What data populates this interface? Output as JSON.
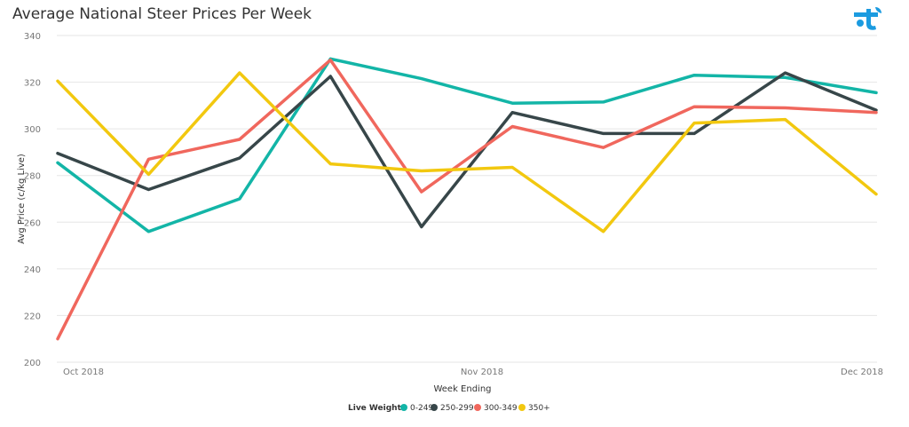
{
  "chart_data": {
    "type": "line",
    "title": "Average National Steer Prices Per Week",
    "xlabel": "Week Ending",
    "ylabel": "Avg Price (c/kg Live)",
    "ylim": [
      200,
      340
    ],
    "yticks": [
      200,
      220,
      240,
      260,
      280,
      300,
      320,
      340
    ],
    "x_tick_labels": [
      "Oct 2018",
      "Nov 2018",
      "Dec 2018"
    ],
    "legend_title": "Live Weight",
    "legend_position": "bottom-center",
    "grid": true,
    "series": [
      {
        "name": "0-249",
        "color": "#13b5a7",
        "values": [
          285.5,
          256,
          270,
          330,
          321.5,
          311,
          311.5,
          323,
          322,
          315.5
        ]
      },
      {
        "name": "250-299",
        "color": "#374649",
        "values": [
          289.5,
          274,
          287.5,
          322.5,
          258,
          307,
          298,
          298,
          324,
          308
        ]
      },
      {
        "name": "300-349",
        "color": "#f0675d",
        "values": [
          210,
          287,
          295.5,
          329.5,
          273,
          301,
          292,
          309.5,
          309,
          307
        ]
      },
      {
        "name": "350+",
        "color": "#f2c80f",
        "values": [
          320.5,
          280.5,
          324,
          285,
          282,
          283.5,
          256,
          302.5,
          304,
          272
        ]
      }
    ]
  }
}
